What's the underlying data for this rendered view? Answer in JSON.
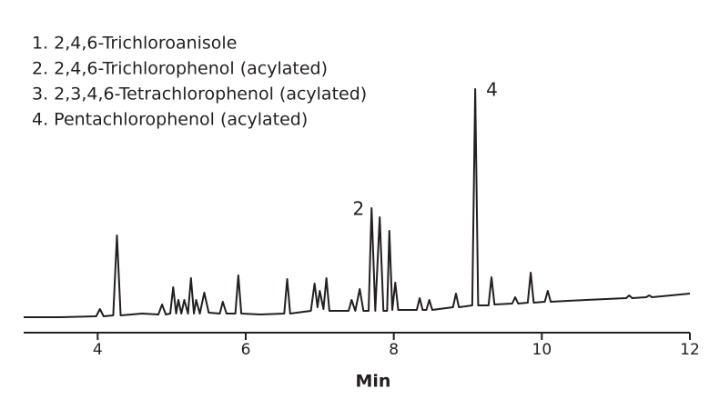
{
  "chart_data": {
    "type": "line",
    "legend_items": [
      "1. 2,4,6-Trichloroanisole",
      "2. 2,4,6-Trichlorophenol (acylated)",
      "3. 2,3,4,6-Tetrachlorophenol (acylated)",
      "4. Pentachlorophenol (acylated)"
    ],
    "annotations": [
      {
        "text": "2",
        "x": 7.7
      },
      {
        "text": "4",
        "x": 9.1
      }
    ],
    "xlabel": "Min",
    "xlim": [
      3,
      12
    ],
    "xticks": [
      4,
      6,
      8,
      10,
      12
    ],
    "ylim": [
      0,
      280
    ],
    "color": "#231f20",
    "x": [
      3.0,
      3.5,
      3.98,
      4.03,
      4.08,
      4.21,
      4.26,
      4.31,
      4.6,
      4.82,
      4.87,
      4.92,
      4.98,
      5.02,
      5.06,
      5.09,
      5.13,
      5.17,
      5.22,
      5.26,
      5.3,
      5.33,
      5.38,
      5.44,
      5.5,
      5.65,
      5.69,
      5.74,
      5.86,
      5.9,
      5.94,
      6.2,
      6.52,
      6.56,
      6.6,
      6.88,
      6.93,
      6.97,
      7.0,
      7.05,
      7.09,
      7.13,
      7.39,
      7.43,
      7.48,
      7.54,
      7.59,
      7.66,
      7.7,
      7.75,
      7.81,
      7.86,
      7.91,
      7.94,
      7.98,
      8.02,
      8.06,
      8.31,
      8.35,
      8.39,
      8.44,
      8.48,
      8.52,
      8.8,
      8.84,
      8.88,
      9.06,
      9.1,
      9.14,
      9.28,
      9.32,
      9.36,
      9.6,
      9.64,
      9.68,
      9.81,
      9.85,
      9.89,
      10.04,
      10.08,
      10.12,
      10.6,
      11.14,
      11.18,
      11.22,
      11.41,
      11.45,
      11.49,
      12.0
    ],
    "values": [
      17,
      17,
      18,
      26,
      18,
      19,
      107,
      19,
      21,
      20,
      31,
      20,
      21,
      50,
      21,
      36,
      21,
      36,
      21,
      60,
      21,
      36,
      21,
      44,
      22,
      21,
      34,
      21,
      21,
      63,
      21,
      20,
      21,
      59,
      21,
      24,
      54,
      28,
      46,
      26,
      60,
      24,
      24,
      36,
      24,
      48,
      24,
      24,
      137,
      24,
      127,
      24,
      24,
      112,
      25,
      55,
      25,
      25,
      38,
      25,
      25,
      36,
      25,
      28,
      43,
      28,
      30,
      268,
      30,
      30,
      61,
      31,
      32,
      39,
      32,
      33,
      66,
      33,
      34,
      46,
      34,
      36,
      38,
      41,
      38,
      39,
      41,
      39,
      43
    ]
  }
}
